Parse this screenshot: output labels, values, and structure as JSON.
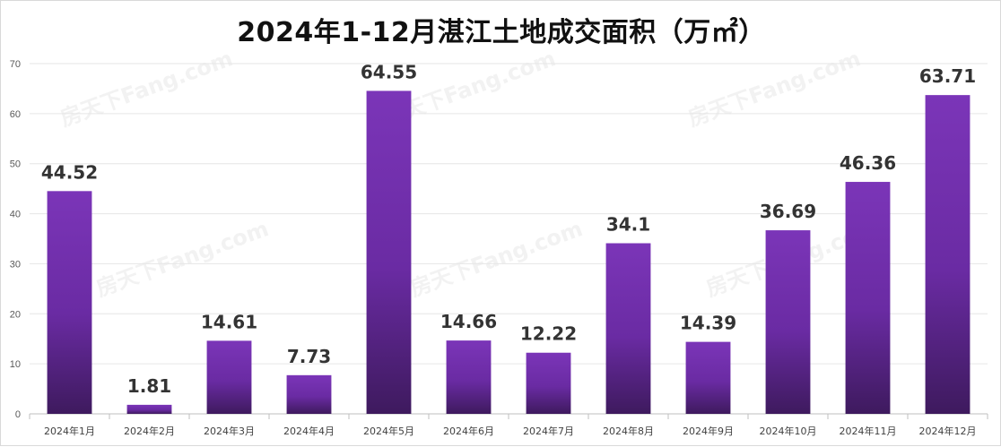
{
  "chart_data": {
    "type": "bar",
    "title": "2024年1-12月湛江土地成交面积（万㎡）",
    "categories": [
      "2024年1月",
      "2024年2月",
      "2024年3月",
      "2024年4月",
      "2024年5月",
      "2024年6月",
      "2024年7月",
      "2024年8月",
      "2024年9月",
      "2024年10月",
      "2024年11月",
      "2024年12月"
    ],
    "values": [
      44.52,
      1.81,
      14.61,
      7.73,
      64.55,
      14.66,
      12.22,
      34.1,
      14.39,
      36.69,
      46.36,
      63.71
    ],
    "data_labels": [
      "44.52",
      "1.81",
      "14.61",
      "7.73",
      "64.55",
      "14.66",
      "12.22",
      "34.1",
      "14.39",
      "36.69",
      "46.36",
      "63.71"
    ],
    "yticks": [
      "0",
      "10",
      "20",
      "30",
      "40",
      "50",
      "60",
      "70"
    ],
    "ylim": [
      0,
      70
    ],
    "xlabel": "",
    "ylabel": "",
    "grid": true,
    "colors": {
      "bar_top": "#7B35B8",
      "bar_bottom": "#3E1A5E",
      "grid": "#e6e6e6",
      "axis": "#bfbfbf"
    }
  },
  "watermark": "房天下Fang.com"
}
